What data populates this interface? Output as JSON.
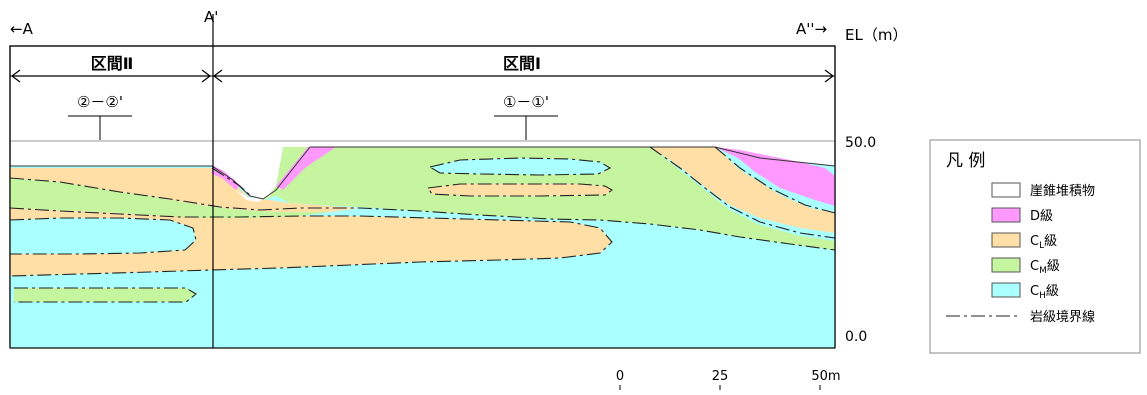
{
  "labels": {
    "left_arrow": "←A",
    "a_prime": "A'",
    "right_arrow": "A''→",
    "elevation_unit": "EL（m）",
    "section_2": "区間Ⅱ",
    "section_1": "区間Ⅰ",
    "marker_2": "②－②'",
    "marker_1": "①－①'",
    "elev_top": "50.0",
    "elev_bottom": "0.0"
  },
  "scale": {
    "ticks": [
      "0",
      "25",
      "50m"
    ]
  },
  "legend": {
    "title": "凡 例",
    "items": [
      {
        "label": "崖錐堆積物",
        "color": "#ffffff"
      },
      {
        "label": "D級",
        "color": "#ff99ff"
      },
      {
        "label": "C",
        "sub": "L",
        "suffix": "級",
        "color": "#ffdfa6"
      },
      {
        "label": "C",
        "sub": "M",
        "suffix": "級",
        "color": "#c6f5a0"
      },
      {
        "label": "C",
        "sub": "H",
        "suffix": "級",
        "color": "#aaffff"
      }
    ],
    "line_label": "岩級境界線"
  },
  "colors": {
    "talus": "#ffffff",
    "d_class": "#ff99ff",
    "cl_class": "#ffdfa6",
    "cm_class": "#c6f5a0",
    "ch_class": "#aaffff"
  }
}
